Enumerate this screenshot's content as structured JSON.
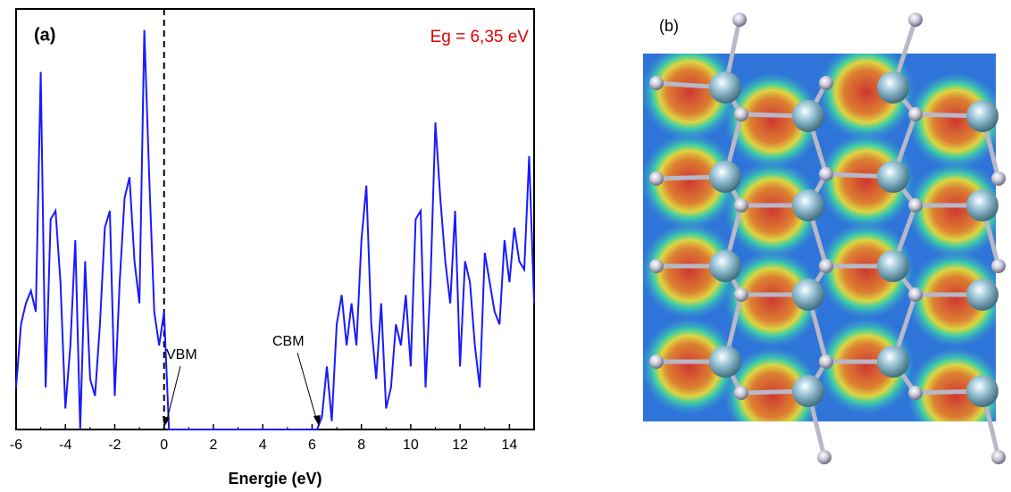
{
  "chart_data": {
    "type": "line",
    "title": "(a)",
    "xlabel": "Energie (eV)",
    "gap_label": "Eg = 6,35 eV",
    "vbm_label": "VBM",
    "cbm_label": "CBM",
    "xlim": [
      -6,
      15
    ],
    "ylim": [
      0,
      100
    ],
    "xticks": [
      -6,
      -4,
      -2,
      0,
      2,
      4,
      6,
      8,
      10,
      12,
      14
    ],
    "vline_x": 0,
    "series": [
      {
        "color": "#1a1aff",
        "x": [
          -6.0,
          -5.8,
          -5.6,
          -5.4,
          -5.2,
          -5.0,
          -4.8,
          -4.6,
          -4.4,
          -4.2,
          -4.0,
          -3.8,
          -3.6,
          -3.4,
          -3.2,
          -3.0,
          -2.8,
          -2.6,
          -2.4,
          -2.2,
          -2.0,
          -1.8,
          -1.6,
          -1.4,
          -1.2,
          -1.0,
          -0.8,
          -0.6,
          -0.4,
          -0.2,
          0.0,
          0.2,
          0.4,
          0.6,
          0.8,
          1.0,
          1.2,
          1.4,
          1.6,
          1.8,
          2.0,
          2.2,
          2.4,
          2.6,
          2.8,
          3.0,
          3.2,
          3.4,
          3.6,
          3.8,
          4.0,
          4.2,
          4.4,
          4.6,
          4.8,
          5.0,
          5.2,
          5.4,
          5.6,
          5.8,
          6.0,
          6.2,
          6.4,
          6.6,
          6.8,
          7.0,
          7.2,
          7.4,
          7.6,
          7.8,
          8.0,
          8.2,
          8.4,
          8.6,
          8.8,
          9.0,
          9.2,
          9.4,
          9.6,
          9.8,
          10.0,
          10.2,
          10.4,
          10.6,
          10.8,
          11.0,
          11.2,
          11.4,
          11.6,
          11.8,
          12.0,
          12.2,
          12.4,
          12.6,
          12.8,
          13.0,
          13.2,
          13.4,
          13.6,
          13.8,
          14.0,
          14.2,
          14.4,
          14.6,
          14.8,
          15.0
        ],
        "values": [
          10,
          25,
          30,
          33,
          28,
          85,
          10,
          50,
          52,
          35,
          5,
          20,
          45,
          0,
          40,
          12,
          8,
          25,
          48,
          52,
          8,
          35,
          55,
          60,
          40,
          30,
          95,
          60,
          28,
          20,
          28,
          0,
          0,
          0,
          0,
          0,
          0,
          0,
          0,
          0,
          0,
          0,
          0,
          0,
          0,
          0,
          0,
          0,
          0,
          0,
          0,
          0,
          0,
          0,
          0,
          0,
          0,
          0,
          0,
          0,
          0,
          0,
          3,
          15,
          2,
          25,
          32,
          20,
          30,
          20,
          45,
          58,
          25,
          12,
          30,
          5,
          10,
          25,
          20,
          32,
          15,
          50,
          52,
          10,
          35,
          73,
          55,
          40,
          30,
          52,
          15,
          40,
          35,
          20,
          10,
          42,
          35,
          28,
          25,
          45,
          35,
          48,
          40,
          38,
          65,
          30
        ]
      }
    ]
  },
  "image": {
    "label": "(b)"
  }
}
